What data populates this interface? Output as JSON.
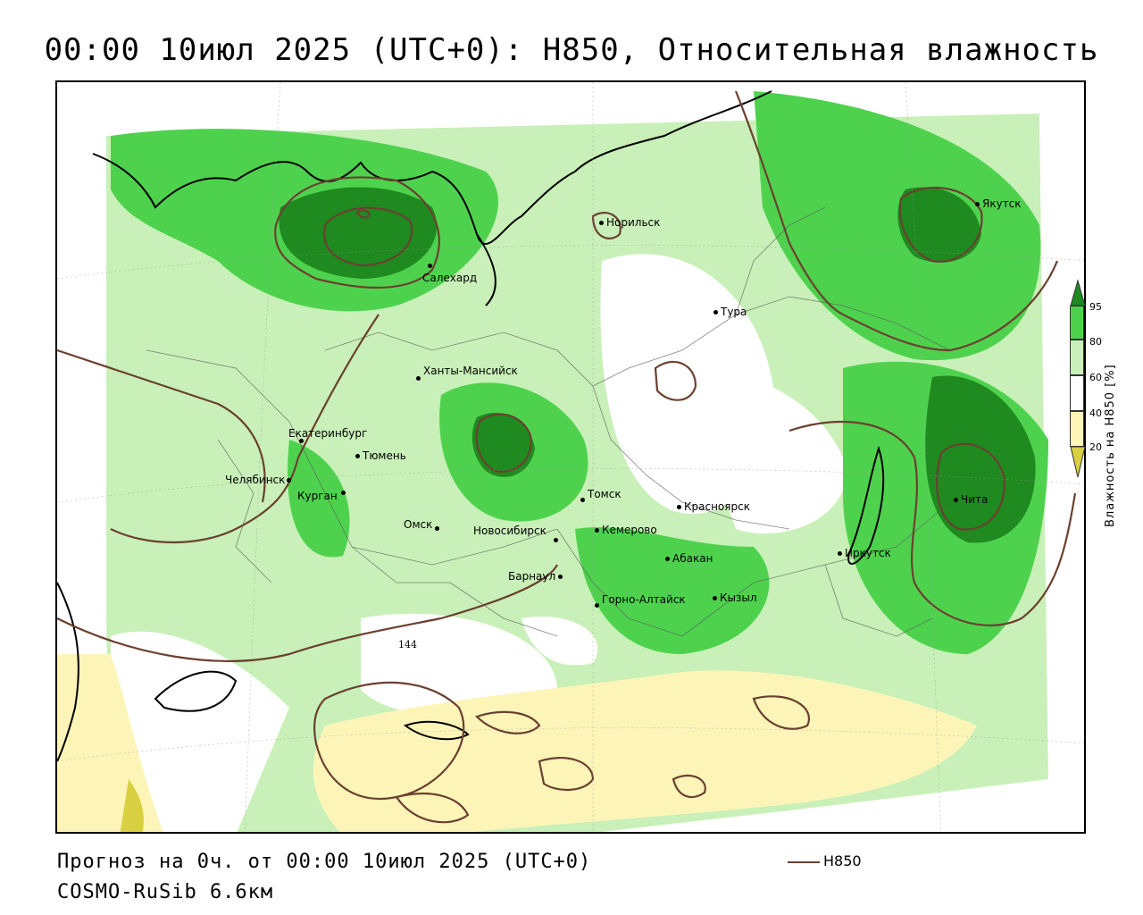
{
  "header": {
    "title": "00:00 10июл 2025 (UTC+0): H850, Относительная влажность"
  },
  "map": {
    "cities": [
      {
        "name": "Норильск"
      },
      {
        "name": "Якутск"
      },
      {
        "name": "Салехард"
      },
      {
        "name": "Тура"
      },
      {
        "name": "Ханты-Мансийск"
      },
      {
        "name": "Екатеринбург"
      },
      {
        "name": "Тюмень"
      },
      {
        "name": "Челябинск"
      },
      {
        "name": "Курган"
      },
      {
        "name": "Омск"
      },
      {
        "name": "Новосибирск"
      },
      {
        "name": "Томск"
      },
      {
        "name": "Кемерово"
      },
      {
        "name": "Красноярск"
      },
      {
        "name": "Барнаул"
      },
      {
        "name": "Абакан"
      },
      {
        "name": "Иркутск"
      },
      {
        "name": "Чита"
      },
      {
        "name": "Горно-Алтайск"
      },
      {
        "name": "Кызыл"
      }
    ],
    "contour_label": "144",
    "colors": {
      "level_95": "#1f8a1f",
      "level_80": "#4ed24e",
      "level_60": "#c8f0b8",
      "level_40": "#ffffff",
      "level_20": "#fdf5b8",
      "level_0": "#d8d040",
      "contour": "#6b4030"
    }
  },
  "legend": {
    "ticks": [
      "95",
      "80",
      "60",
      "40",
      "20"
    ],
    "label": "Влажность на H850 [%]"
  },
  "footer": {
    "forecast": "Прогноз на 0ч. от 00:00 10июл 2025 (UTC+0)",
    "model": "COSMO-RuSib 6.6км",
    "line_legend": "H850"
  }
}
